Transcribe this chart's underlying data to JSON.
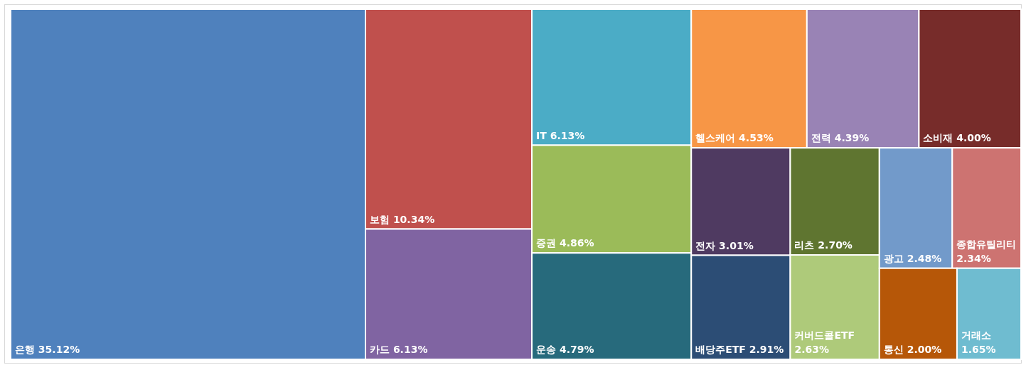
{
  "chart_data": {
    "type": "other",
    "categories": [
      "은행",
      "보험",
      "카드",
      "IT",
      "증권",
      "운송",
      "헬스케어",
      "전력",
      "소비재",
      "전자",
      "배당주ETF",
      "리츠",
      "커버드콜ETF",
      "광고",
      "종합유틸리티",
      "통신",
      "거래소"
    ],
    "values": [
      35.12,
      10.34,
      6.13,
      6.13,
      4.86,
      4.79,
      4.53,
      4.39,
      4.0,
      3.01,
      2.91,
      2.7,
      2.63,
      2.48,
      2.34,
      2.0,
      1.65
    ],
    "value_labels": [
      "35.12%",
      "10.34%",
      "6.13%",
      "6.13%",
      "4.86%",
      "4.79%",
      "4.53%",
      "4.39%",
      "4.00%",
      "3.01%",
      "2.91%",
      "2.70%",
      "2.63%",
      "2.48%",
      "2.34%",
      "2.00%",
      "1.65%"
    ],
    "colors": [
      "#4f81bd",
      "#c0504d",
      "#8064a2",
      "#4bacc6",
      "#9bbb59",
      "#276a7c",
      "#f79646",
      "#9983b5",
      "#772c2a",
      "#4f3a61",
      "#2c4d75",
      "#5f7530",
      "#aeca7a",
      "#729aca",
      "#cd7371",
      "#b65708",
      "#6fbcd0"
    ]
  }
}
